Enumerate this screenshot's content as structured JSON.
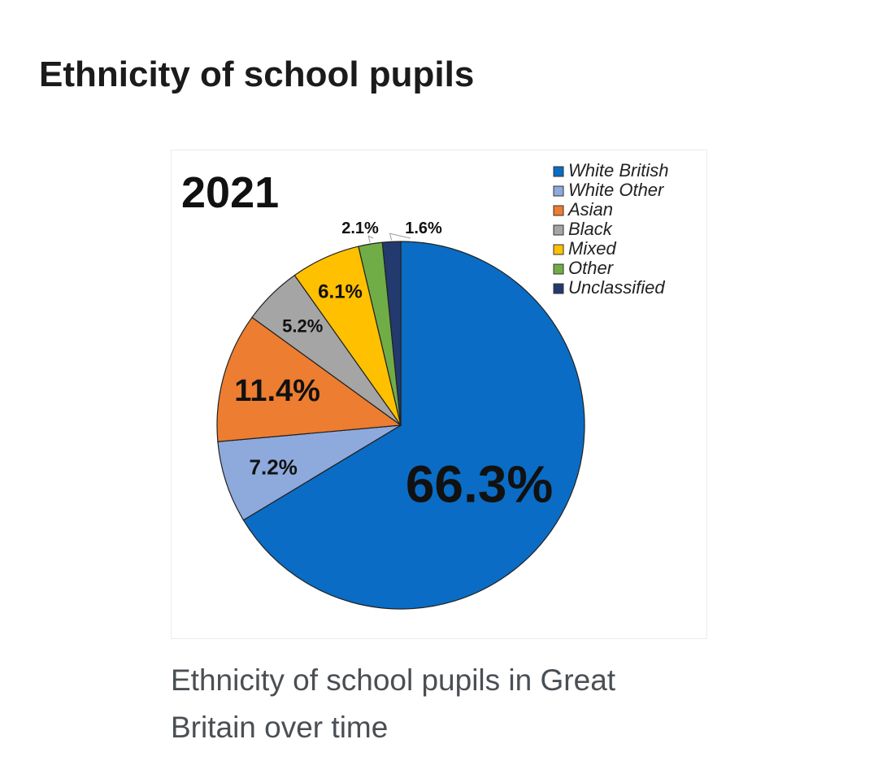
{
  "page": {
    "heading": "Ethnicity of school pupils",
    "caption": "Ethnicity of school pupils in Great Britain over time"
  },
  "chart_data": {
    "type": "pie",
    "title": "2021",
    "legend_position": "top-right",
    "categories": [
      "White British",
      "White Other",
      "Asian",
      "Black",
      "Mixed",
      "Other",
      "Unclassified"
    ],
    "values": [
      66.3,
      7.2,
      11.4,
      5.2,
      6.1,
      2.1,
      1.6
    ],
    "labels": [
      "66.3%",
      "7.2%",
      "11.4%",
      "5.2%",
      "6.1%",
      "2.1%",
      "1.6%"
    ],
    "colors": [
      "#0a6cc4",
      "#8eaadc",
      "#ed7d31",
      "#a5a5a5",
      "#ffc000",
      "#70ad47",
      "#223a6e"
    ]
  }
}
